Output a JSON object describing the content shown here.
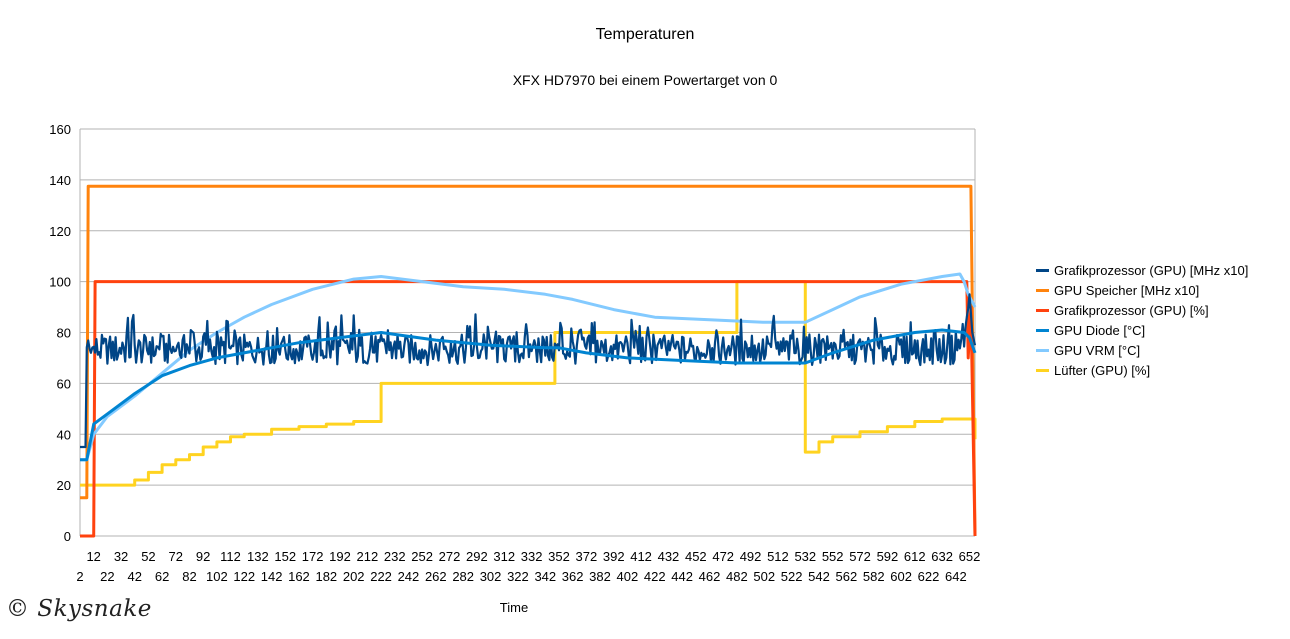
{
  "chart_data": {
    "type": "line",
    "title": "Temperaturen",
    "subtitle": "XFX HD7970 bei einem Powertarget von 0",
    "xlabel": "Time",
    "ylabel": "",
    "ylim": [
      0,
      160
    ],
    "yticks": [
      0,
      20,
      40,
      60,
      80,
      100,
      120,
      140,
      160
    ],
    "xlim": [
      2,
      656
    ],
    "xticks_odd": [
      12,
      32,
      52,
      72,
      92,
      112,
      132,
      152,
      172,
      192,
      212,
      232,
      252,
      272,
      292,
      312,
      332,
      352,
      372,
      392,
      412,
      432,
      452,
      472,
      492,
      512,
      532,
      552,
      572,
      592,
      612,
      632,
      652
    ],
    "xticks_even": [
      2,
      22,
      42,
      62,
      82,
      102,
      122,
      142,
      162,
      182,
      202,
      222,
      242,
      262,
      282,
      302,
      322,
      342,
      362,
      382,
      402,
      422,
      442,
      462,
      482,
      502,
      522,
      542,
      562,
      582,
      602,
      622,
      642
    ],
    "grid": "horizontal",
    "legend_position": "right",
    "series": [
      {
        "name": "Grafikprozessor (GPU) [MHz x10]",
        "color": "#004586",
        "noisy": true,
        "x": [
          2,
          6,
          7,
          10,
          13,
          360,
          535,
          648,
          652,
          654,
          656
        ],
        "base": [
          35,
          35,
          74,
          72,
          72,
          72,
          72,
          72,
          95,
          80,
          75
        ],
        "amp": [
          0,
          0,
          2,
          10,
          12,
          12,
          12,
          12,
          0,
          0,
          0
        ]
      },
      {
        "name": "GPU Speicher [MHz x10]",
        "color": "#ff830d",
        "x": [
          2,
          7,
          8,
          652,
          653,
          656
        ],
        "y": [
          15,
          15,
          137.5,
          137.5,
          137.5,
          0
        ]
      },
      {
        "name": "Grafikprozessor (GPU) [%]",
        "color": "#ff420e",
        "x": [
          2,
          12,
          13,
          650,
          651,
          653,
          656
        ],
        "y": [
          0,
          0,
          100,
          100,
          70,
          90,
          0
        ]
      },
      {
        "name": "GPU Diode [°C]",
        "color": "#0084d1",
        "x": [
          2,
          7,
          12,
          22,
          42,
          62,
          82,
          102,
          132,
          162,
          192,
          222,
          262,
          302,
          342,
          352,
          372,
          402,
          442,
          482,
          532,
          552,
          582,
          612,
          632,
          648,
          652,
          656
        ],
        "y": [
          30,
          30,
          44,
          48,
          56,
          63,
          67,
          70,
          73,
          76,
          78,
          80,
          77,
          75,
          74,
          74,
          72,
          70,
          69,
          68,
          68,
          72,
          77,
          80,
          81,
          80,
          78,
          72
        ]
      },
      {
        "name": "GPU VRM [°C]",
        "color": "#83caff",
        "x": [
          2,
          7,
          12,
          22,
          42,
          62,
          82,
          102,
          122,
          142,
          172,
          202,
          222,
          252,
          282,
          312,
          342,
          362,
          392,
          422,
          462,
          502,
          532,
          552,
          572,
          602,
          632,
          645,
          648,
          651,
          656
        ],
        "y": [
          30,
          30,
          40,
          47,
          55,
          64,
          73,
          80,
          86,
          91,
          97,
          101,
          102,
          100,
          98,
          97,
          95,
          93,
          89,
          86,
          85,
          84,
          84,
          89,
          94,
          99,
          102,
          103,
          100,
          95,
          90
        ]
      },
      {
        "name": "Lüfter (GPU) [%]",
        "color": "#ffd320",
        "step": true,
        "x": [
          2,
          32,
          42,
          52,
          62,
          72,
          82,
          92,
          102,
          112,
          122,
          142,
          162,
          182,
          202,
          222,
          349,
          482,
          532,
          542,
          552,
          572,
          592,
          612,
          632,
          652,
          656
        ],
        "y": [
          20,
          20,
          22,
          25,
          28,
          30,
          32,
          35,
          37,
          39,
          40,
          42,
          43,
          44,
          45,
          60,
          80,
          100,
          33,
          37,
          39,
          41,
          43,
          45,
          46,
          46,
          38
        ]
      }
    ]
  },
  "watermark": "© Skysnake"
}
